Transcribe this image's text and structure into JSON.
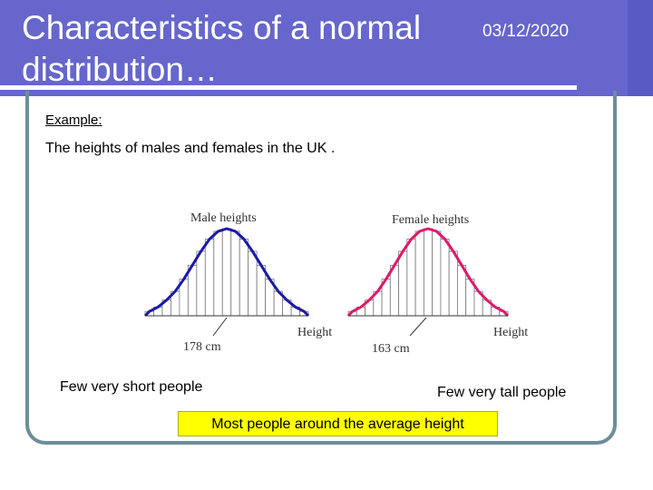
{
  "header": {
    "title": "Characteristics of a normal distribution…",
    "date": "03/12/2020"
  },
  "body": {
    "example_label": "Example:",
    "intro": "The heights of males and females in the UK .",
    "note_left": "Few very short people",
    "note_right": "Few very tall people",
    "callout": "Most people around the average height"
  },
  "colors": {
    "header_bg": "#6666cc",
    "male_curve": "#1a1aa8",
    "female_curve": "#e0186a",
    "callout_bg": "#ffff00"
  },
  "chart_data": [
    {
      "type": "bar",
      "title": "Male heights",
      "xlabel": "Height",
      "mean_label": "178 cm",
      "curve": "normal",
      "values": [
        0.05,
        0.1,
        0.18,
        0.28,
        0.42,
        0.58,
        0.74,
        0.88,
        0.97,
        1.0,
        0.97,
        0.88,
        0.74,
        0.58,
        0.42,
        0.28,
        0.18,
        0.1,
        0.05
      ]
    },
    {
      "type": "bar",
      "title": "Female heights",
      "xlabel": "Height",
      "mean_label": "163 cm",
      "curve": "normal",
      "values": [
        0.05,
        0.1,
        0.18,
        0.28,
        0.42,
        0.58,
        0.74,
        0.88,
        0.97,
        1.0,
        0.97,
        0.88,
        0.74,
        0.58,
        0.42,
        0.28,
        0.18,
        0.1,
        0.05
      ]
    }
  ]
}
